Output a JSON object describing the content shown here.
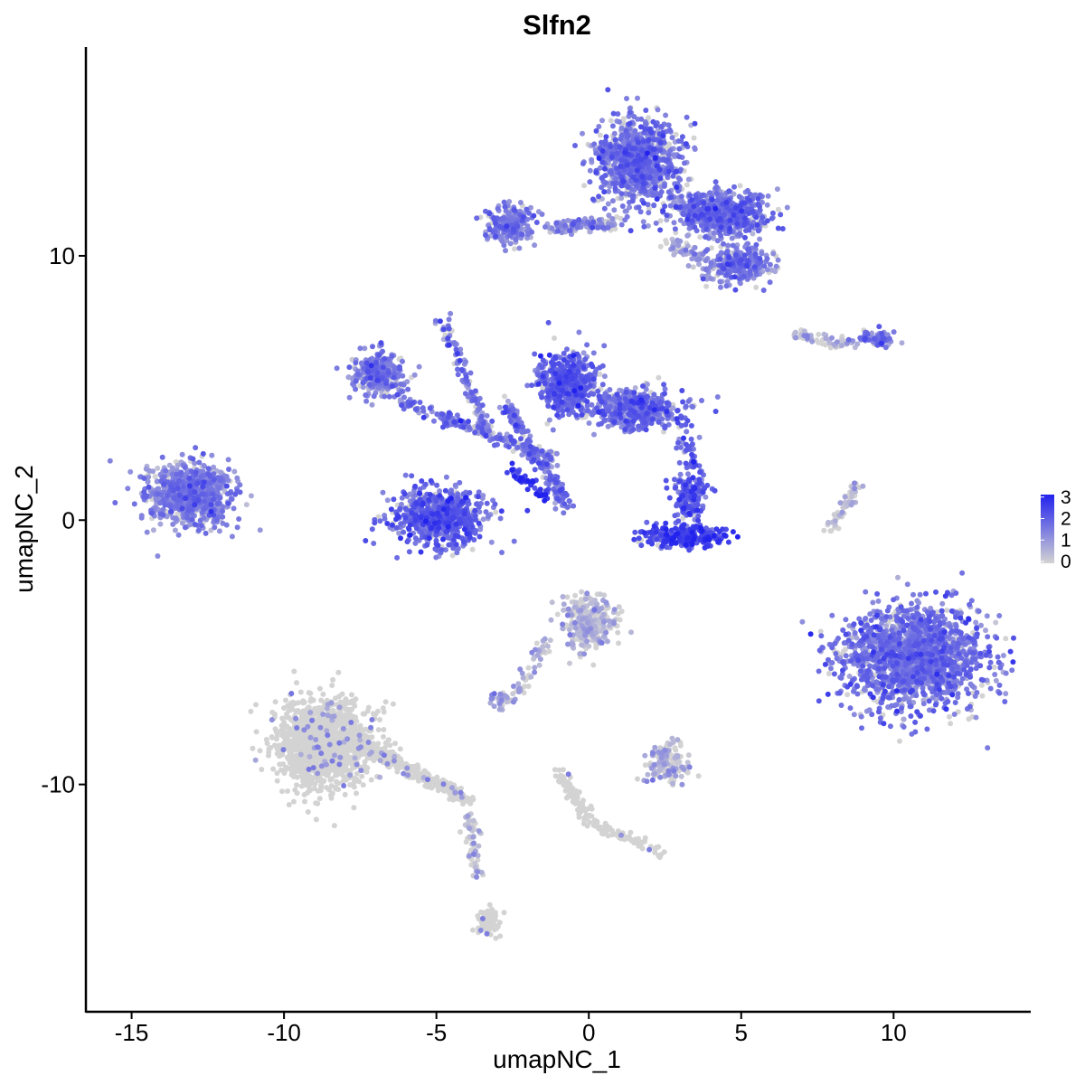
{
  "chart_data": {
    "type": "scatter",
    "title": "Slfn2",
    "xlabel": "umapNC_1",
    "ylabel": "umapNC_2",
    "xlim": [
      -16.5,
      14.5
    ],
    "ylim": [
      -18.6,
      17.9
    ],
    "x_ticks": [
      -15,
      -10,
      -5,
      0,
      5,
      10
    ],
    "y_ticks": [
      -10,
      0,
      10
    ],
    "x_tick_labels": [
      "-15",
      "-10",
      "-5",
      "0",
      "5",
      "10"
    ],
    "y_tick_labels": [
      "-10",
      "0",
      "10"
    ],
    "grid": false,
    "legend": {
      "position": "right",
      "type": "colorbar",
      "min": 0,
      "max": 3,
      "ticks": [
        "3",
        "2",
        "1",
        "0"
      ],
      "low_color": "#d3d3d3",
      "high_color": "#2222ee"
    },
    "clusters": [
      {
        "name": "A",
        "center": [
          -13.1,
          1.0
        ],
        "spread": [
          0.9,
          0.75
        ],
        "expression": 1.3,
        "n": 900
      },
      {
        "name": "B",
        "center": [
          1.6,
          13.6
        ],
        "spread": [
          0.9,
          1.1
        ],
        "expression": 1.5,
        "n": 900
      },
      {
        "name": "C",
        "center": [
          4.3,
          11.6
        ],
        "spread": [
          1.0,
          0.55
        ],
        "expression": 1.5,
        "n": 700
      },
      {
        "name": "D",
        "center": [
          4.9,
          9.7
        ],
        "spread": [
          0.7,
          0.45
        ],
        "expression": 1.4,
        "n": 300
      },
      {
        "name": "E",
        "center": [
          -2.6,
          11.2
        ],
        "spread": [
          0.55,
          0.5
        ],
        "expression": 1.3,
        "n": 220
      },
      {
        "name": "F",
        "center": [
          -6.9,
          5.5
        ],
        "spread": [
          0.6,
          0.55
        ],
        "expression": 1.4,
        "n": 280
      },
      {
        "name": "G",
        "center": [
          -0.7,
          5.2
        ],
        "spread": [
          0.6,
          0.8
        ],
        "expression": 1.8,
        "n": 500
      },
      {
        "name": "H",
        "center": [
          1.6,
          4.2
        ],
        "spread": [
          1.0,
          0.5
        ],
        "expression": 1.6,
        "n": 500
      },
      {
        "name": "I",
        "center": [
          -4.9,
          0.1
        ],
        "spread": [
          1.0,
          0.75
        ],
        "expression": 1.8,
        "n": 700
      },
      {
        "name": "J",
        "center": [
          3.3,
          0.9
        ],
        "spread": [
          0.35,
          0.6
        ],
        "expression": 1.9,
        "n": 150
      },
      {
        "name": "K",
        "center": [
          3.2,
          -0.6
        ],
        "spread": [
          1.0,
          0.28
        ],
        "expression": 2.3,
        "n": 260
      },
      {
        "name": "L",
        "center": [
          10.6,
          -5.2
        ],
        "spread": [
          1.6,
          1.25
        ],
        "expression": 1.5,
        "n": 1700
      },
      {
        "name": "M",
        "center": [
          0.0,
          -3.9
        ],
        "spread": [
          0.6,
          0.7
        ],
        "expression": 0.4,
        "n": 300
      },
      {
        "name": "N",
        "center": [
          -8.7,
          -8.4
        ],
        "spread": [
          1.0,
          1.1
        ],
        "expression": 0.04,
        "n": 1400
      },
      {
        "name": "O",
        "center": [
          2.6,
          -9.4
        ],
        "spread": [
          0.5,
          0.35
        ],
        "expression": 0.5,
        "n": 120
      },
      {
        "name": "P",
        "center": [
          -3.3,
          -15.2
        ],
        "spread": [
          0.25,
          0.4
        ],
        "expression": 0.08,
        "n": 80
      },
      {
        "name": "Q",
        "center": [
          9.4,
          6.9
        ],
        "spread": [
          0.4,
          0.2
        ],
        "expression": 1.4,
        "n": 60
      },
      {
        "name": "R",
        "center": [
          -2.8,
          -6.8
        ],
        "spread": [
          0.3,
          0.2
        ],
        "expression": 0.6,
        "n": 40
      }
    ],
    "trails": [
      {
        "from": [
          -1.3,
          11.1
        ],
        "to": [
          0.8,
          11.2
        ],
        "n": 120,
        "expression": 1.2
      },
      {
        "from": [
          -4.8,
          7.6
        ],
        "to": [
          -3.3,
          3.2
        ],
        "n": 120,
        "expression": 1.4
      },
      {
        "from": [
          -6.2,
          4.5
        ],
        "to": [
          -1.0,
          2.3
        ],
        "n": 200,
        "expression": 1.5
      },
      {
        "from": [
          -2.8,
          4.5
        ],
        "to": [
          -0.7,
          0.5
        ],
        "n": 200,
        "expression": 1.6
      },
      {
        "from": [
          -2.6,
          2.0
        ],
        "to": [
          -1.2,
          0.7
        ],
        "n": 50,
        "expression": 2.5
      },
      {
        "from": [
          -7.6,
          -8.4
        ],
        "to": [
          -3.9,
          -10.6
        ],
        "n": 300,
        "expression": 0.1
      },
      {
        "from": [
          -3.9,
          -11.0
        ],
        "to": [
          -3.7,
          -13.5
        ],
        "n": 60,
        "expression": 0.4
      },
      {
        "from": [
          -1.4,
          -4.5
        ],
        "to": [
          -2.5,
          -6.9
        ],
        "n": 50,
        "expression": 0.5
      },
      {
        "from": [
          -1.0,
          -9.5
        ],
        "to": [
          0.1,
          -11.5
        ],
        "n": 90,
        "expression": 0.05
      },
      {
        "from": [
          0.1,
          -11.5
        ],
        "to": [
          2.5,
          -12.6
        ],
        "n": 90,
        "expression": 0.05
      },
      {
        "from": [
          8.8,
          1.3
        ],
        "to": [
          7.9,
          -0.4
        ],
        "n": 60,
        "expression": 0.2
      },
      {
        "from": [
          6.7,
          7.0
        ],
        "to": [
          8.7,
          6.6
        ],
        "n": 60,
        "expression": 0.4
      },
      {
        "from": [
          2.5,
          10.5
        ],
        "to": [
          3.8,
          9.9
        ],
        "n": 50,
        "expression": 0.8
      },
      {
        "from": [
          2.0,
          -9.0
        ],
        "to": [
          3.0,
          -8.4
        ],
        "n": 30,
        "expression": 0.6
      },
      {
        "from": [
          3.0,
          3.1
        ],
        "to": [
          3.9,
          1.1
        ],
        "n": 40,
        "expression": 1.8
      }
    ]
  }
}
